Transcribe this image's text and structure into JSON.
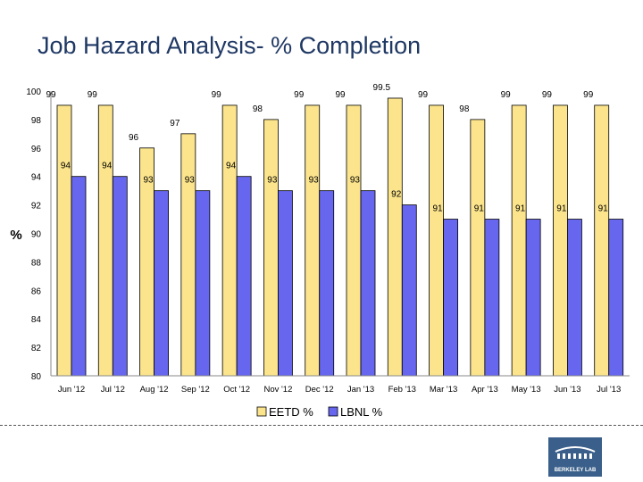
{
  "page": {
    "title": "Job Hazard Analysis- % Completion"
  },
  "colors": {
    "eetd": "#fbe48c",
    "lbnl": "#6666ee",
    "title": "#1f3864",
    "logo": "#3a5f8a"
  },
  "logo": {
    "text": "BERKELEY LAB"
  },
  "chart_data": {
    "type": "bar",
    "title": "Job Hazard Analysis- % Completion",
    "ylabel": "%",
    "xlabel": "",
    "ylim": [
      80,
      100
    ],
    "yticks": [
      "80",
      "82",
      "84",
      "86",
      "88",
      "90",
      "92",
      "94",
      "96",
      "98",
      "100"
    ],
    "categories": [
      "Jun '12",
      "Jul '12",
      "Aug '12",
      "Sep '12",
      "Oct '12",
      "Nov '12",
      "Dec '12",
      "Jan '13",
      "Feb '13",
      "Mar '13",
      "Apr '13",
      "May '13",
      "Jun '13",
      "Jul '13"
    ],
    "series": [
      {
        "name": "EETD %",
        "values": [
          99,
          99,
          96,
          97,
          99,
          98,
          99,
          99,
          99.5,
          99,
          98,
          99,
          99,
          99
        ],
        "labels": [
          "99",
          "99",
          "96",
          "97",
          "99",
          "98",
          "99",
          "99",
          "99.5",
          "99",
          "98",
          "99",
          "99",
          "99"
        ]
      },
      {
        "name": "LBNL %",
        "values": [
          94,
          94,
          93,
          93,
          94,
          93,
          93,
          93,
          92,
          91,
          91,
          91,
          91,
          91
        ],
        "labels": [
          "94",
          "94",
          "93",
          "93",
          "94",
          "93",
          "93",
          "93",
          "92",
          "91",
          "91",
          "91",
          "91",
          "91"
        ]
      }
    ],
    "legend": {
      "position": "bottom",
      "entries": [
        "EETD %",
        "LBNL %"
      ]
    },
    "grid": false
  }
}
